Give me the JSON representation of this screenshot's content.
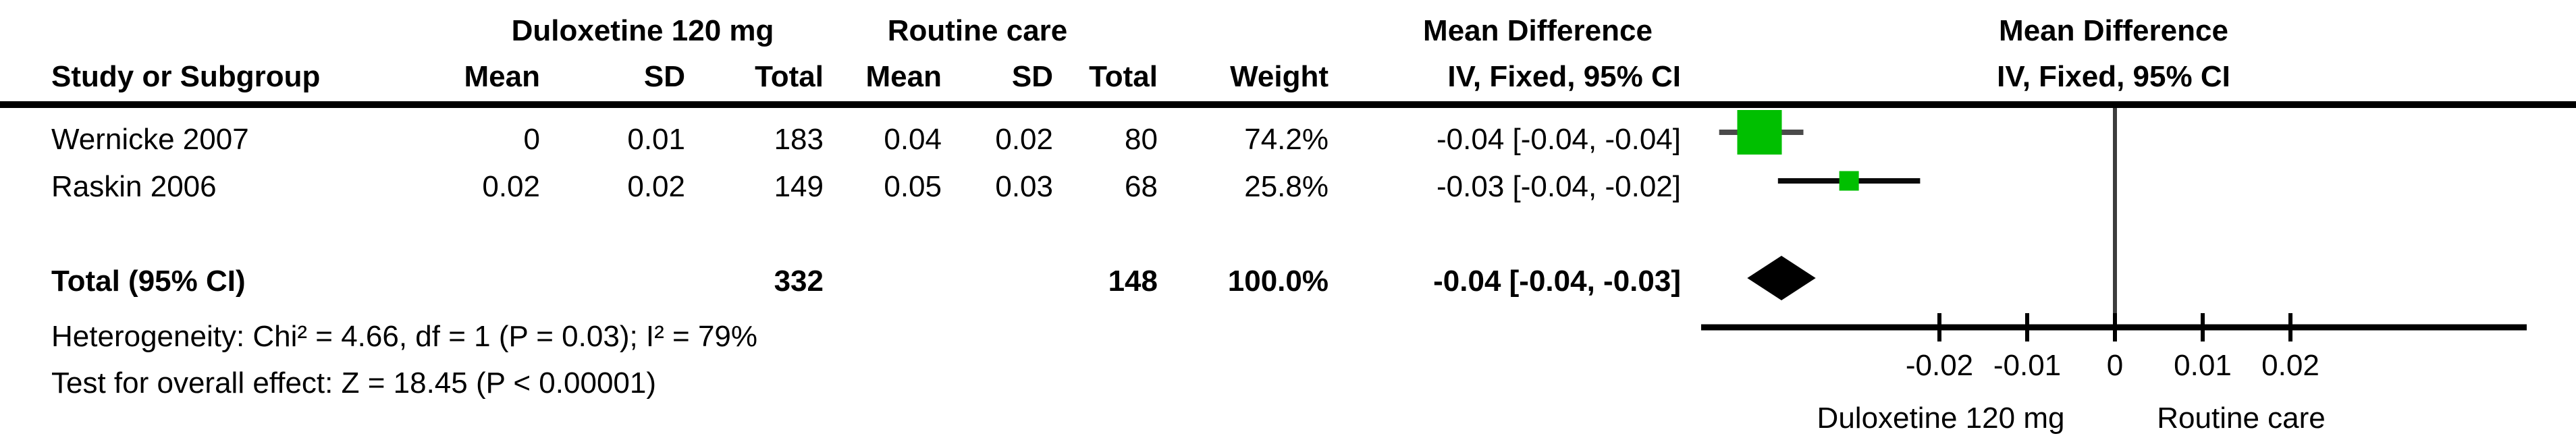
{
  "table": {
    "group1_header": "Duloxetine 120 mg",
    "group2_header": "Routine care",
    "effect_header_line1": "Mean Difference",
    "effect_header_line2": "IV, Fixed, 95% CI",
    "plot_header_line1": "Mean Difference",
    "plot_header_line2": "IV, Fixed, 95% CI",
    "columns": {
      "study": "Study or Subgroup",
      "mean": "Mean",
      "sd": "SD",
      "total": "Total",
      "weight": "Weight"
    },
    "rows": [
      {
        "study": "Wernicke 2007",
        "mean1": "0",
        "sd1": "0.01",
        "total1": "183",
        "mean2": "0.04",
        "sd2": "0.02",
        "total2": "80",
        "weight": "74.2%",
        "ci": "-0.04 [-0.04, -0.04]"
      },
      {
        "study": "Raskin 2006",
        "mean1": "0.02",
        "sd1": "0.02",
        "total1": "149",
        "mean2": "0.05",
        "sd2": "0.03",
        "total2": "68",
        "weight": "25.8%",
        "ci": "-0.03 [-0.04, -0.02]"
      }
    ],
    "total_row": {
      "label": "Total (95% CI)",
      "total1": "332",
      "total2": "148",
      "weight": "100.0%",
      "ci": "-0.04 [-0.04, -0.03]"
    },
    "footnotes": [
      "Heterogeneity: Chi² = 4.66, df = 1 (P = 0.03); I² = 79%",
      "Test for overall effect: Z = 18.45 (P < 0.00001)"
    ]
  },
  "chart_data": {
    "type": "forest",
    "effect_measure": "Mean Difference",
    "method": "IV, Fixed, 95% CI",
    "axis": {
      "ticks": [
        -0.02,
        -0.01,
        0,
        0.01,
        0.02
      ],
      "tick_labels": [
        "-0.02",
        "-0.01",
        "0",
        "0.01",
        "0.02"
      ],
      "xmin": -0.047,
      "xmax": 0.047,
      "left_label": "Duloxetine 120 mg",
      "right_label": "Routine care"
    },
    "studies": [
      {
        "name": "Wernicke 2007",
        "md_text": "-0.04 [-0.04, -0.04]",
        "estimate": -0.0405,
        "ci_lower_drawn": -0.0451,
        "ci_upper_drawn": -0.0355,
        "weight_pct": 74.2,
        "marker_px": 66,
        "line_color": "#4a4a4a"
      },
      {
        "name": "Raskin 2006",
        "md_text": "-0.03 [-0.04, -0.02]",
        "estimate": -0.0303,
        "ci_lower_drawn": -0.0384,
        "ci_upper_drawn": -0.0222,
        "weight_pct": 25.8,
        "marker_px": 29,
        "line_color": "#0a0a0a"
      }
    ],
    "total": {
      "label": "Total (95% CI)",
      "md_text": "-0.04 [-0.04, -0.03]",
      "estimate": -0.038,
      "ci_lower_drawn": -0.0419,
      "ci_upper_drawn": -0.0341
    },
    "legend_position": "bottom",
    "grid": false
  },
  "colors": {
    "square_green": "#00bf00",
    "diamond_black": "#000000",
    "axis_black": "#000000",
    "zero_line_gray": "#3d3d3d"
  }
}
